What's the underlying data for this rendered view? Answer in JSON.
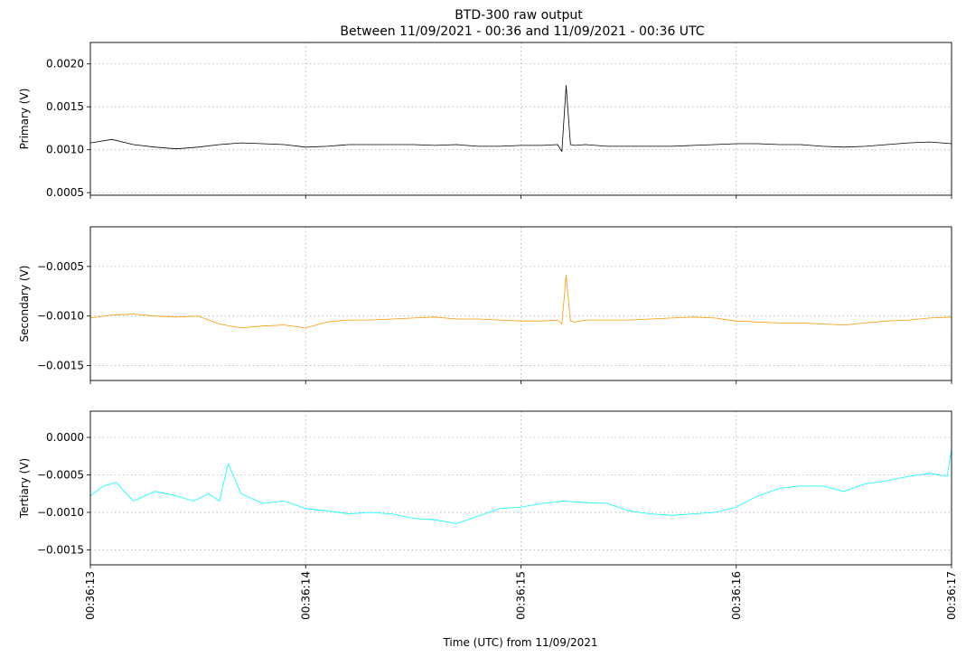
{
  "chart_data": {
    "type": "line",
    "title": "BTD-300 raw output",
    "subtitle": "Between 11/09/2021 - 00:36 and 11/09/2021 - 00:36 UTC",
    "xlabel": "Time (UTC) from 11/09/2021",
    "x_range": [
      "00:36:13",
      "00:36:17"
    ],
    "x_ticks": [
      "00:36:13",
      "00:36:14",
      "00:36:15",
      "00:36:16",
      "00:36:17"
    ],
    "grid": true,
    "panels": [
      {
        "ylabel": "Primary (V)",
        "color": "#000000",
        "ylim": [
          0.00047,
          0.00225
        ],
        "y_ticks": [
          0.0005,
          0.001,
          0.0015,
          0.002
        ],
        "y_tick_labels": [
          "0.0005",
          "0.0010",
          "0.0015",
          "0.0020"
        ],
        "series": [
          {
            "x": [
              "00:36:13.00",
              "00:36:13.10",
              "00:36:13.20",
              "00:36:13.30",
              "00:36:13.40",
              "00:36:13.50",
              "00:36:13.60",
              "00:36:13.70",
              "00:36:13.80",
              "00:36:13.90",
              "00:36:14.00",
              "00:36:14.10",
              "00:36:14.20",
              "00:36:14.30",
              "00:36:14.40",
              "00:36:14.50",
              "00:36:14.60",
              "00:36:14.70",
              "00:36:14.80",
              "00:36:14.90",
              "00:36:15.00",
              "00:36:15.10",
              "00:36:15.17",
              "00:36:15.19",
              "00:36:15.21",
              "00:36:15.23",
              "00:36:15.25",
              "00:36:15.30",
              "00:36:15.40",
              "00:36:15.50",
              "00:36:15.60",
              "00:36:15.70",
              "00:36:15.80",
              "00:36:15.90",
              "00:36:16.00",
              "00:36:16.10",
              "00:36:16.20",
              "00:36:16.30",
              "00:36:16.40",
              "00:36:16.50",
              "00:36:16.60",
              "00:36:16.70",
              "00:36:16.80",
              "00:36:16.90",
              "00:36:17.00"
            ],
            "y": [
              0.00108,
              0.00112,
              0.00106,
              0.00103,
              0.00101,
              0.00103,
              0.00106,
              0.00108,
              0.00107,
              0.00106,
              0.00103,
              0.00104,
              0.00106,
              0.00106,
              0.00106,
              0.00106,
              0.00105,
              0.00106,
              0.00104,
              0.00104,
              0.00105,
              0.00105,
              0.00106,
              0.00098,
              0.00175,
              0.00106,
              0.00105,
              0.00106,
              0.00104,
              0.00104,
              0.00104,
              0.00104,
              0.00105,
              0.00106,
              0.00107,
              0.00107,
              0.00106,
              0.00106,
              0.00104,
              0.00103,
              0.00104,
              0.00106,
              0.00108,
              0.00109,
              0.00107
            ]
          }
        ]
      },
      {
        "ylabel": "Secondary (V)",
        "color": "#ff9900",
        "ylim": [
          -0.00165,
          -0.0001
        ],
        "y_ticks": [
          -0.0015,
          -0.001,
          -0.0005
        ],
        "y_tick_labels": [
          "−0.0015",
          "−0.0010",
          "−0.0005"
        ],
        "series": [
          {
            "x": [
              "00:36:13.00",
              "00:36:13.10",
              "00:36:13.20",
              "00:36:13.30",
              "00:36:13.40",
              "00:36:13.50",
              "00:36:13.60",
              "00:36:13.70",
              "00:36:13.80",
              "00:36:13.90",
              "00:36:14.00",
              "00:36:14.10",
              "00:36:14.20",
              "00:36:14.30",
              "00:36:14.40",
              "00:36:14.50",
              "00:36:14.60",
              "00:36:14.70",
              "00:36:14.80",
              "00:36:14.90",
              "00:36:15.00",
              "00:36:15.10",
              "00:36:15.17",
              "00:36:15.19",
              "00:36:15.21",
              "00:36:15.23",
              "00:36:15.25",
              "00:36:15.30",
              "00:36:15.40",
              "00:36:15.50",
              "00:36:15.60",
              "00:36:15.70",
              "00:36:15.80",
              "00:36:15.90",
              "00:36:16.00",
              "00:36:16.10",
              "00:36:16.20",
              "00:36:16.30",
              "00:36:16.40",
              "00:36:16.50",
              "00:36:16.60",
              "00:36:16.70",
              "00:36:16.80",
              "00:36:16.90",
              "00:36:17.00"
            ],
            "y": [
              -0.00102,
              -0.00099,
              -0.00098,
              -0.001,
              -0.00101,
              -0.001,
              -0.00108,
              -0.00112,
              -0.0011,
              -0.00109,
              -0.00112,
              -0.00106,
              -0.00104,
              -0.00104,
              -0.00103,
              -0.00102,
              -0.00101,
              -0.00103,
              -0.00103,
              -0.00104,
              -0.00105,
              -0.00105,
              -0.00104,
              -0.00108,
              -0.00059,
              -0.00105,
              -0.00106,
              -0.00104,
              -0.00104,
              -0.00104,
              -0.00103,
              -0.00102,
              -0.00101,
              -0.00102,
              -0.00105,
              -0.00106,
              -0.00107,
              -0.00107,
              -0.00108,
              -0.00109,
              -0.00107,
              -0.00105,
              -0.00104,
              -0.00102,
              -0.00101
            ]
          }
        ]
      },
      {
        "ylabel": "Tertiary (V)",
        "color": "#00ffff",
        "ylim": [
          -0.0017,
          0.00035
        ],
        "y_ticks": [
          -0.0015,
          -0.001,
          -0.0005,
          0.0
        ],
        "y_tick_labels": [
          "−0.0015",
          "−0.0010",
          "−0.0005",
          "0.0000"
        ],
        "series": [
          {
            "x": [
              "00:36:13.00",
              "00:36:13.06",
              "00:36:13.12",
              "00:36:13.20",
              "00:36:13.30",
              "00:36:13.40",
              "00:36:13.48",
              "00:36:13.55",
              "00:36:13.60",
              "00:36:13.64",
              "00:36:13.70",
              "00:36:13.80",
              "00:36:13.90",
              "00:36:14.00",
              "00:36:14.10",
              "00:36:14.20",
              "00:36:14.30",
              "00:36:14.40",
              "00:36:14.50",
              "00:36:14.60",
              "00:36:14.70",
              "00:36:14.80",
              "00:36:14.90",
              "00:36:15.00",
              "00:36:15.10",
              "00:36:15.20",
              "00:36:15.30",
              "00:36:15.40",
              "00:36:15.50",
              "00:36:15.60",
              "00:36:15.70",
              "00:36:15.80",
              "00:36:15.90",
              "00:36:16.00",
              "00:36:16.10",
              "00:36:16.20",
              "00:36:16.30",
              "00:36:16.40",
              "00:36:16.50",
              "00:36:16.60",
              "00:36:16.70",
              "00:36:16.80",
              "00:36:16.90",
              "00:36:16.98",
              "00:36:17.00"
            ],
            "y": [
              -0.00078,
              -0.00065,
              -0.0006,
              -0.00085,
              -0.00072,
              -0.00078,
              -0.00085,
              -0.00075,
              -0.00085,
              -0.00035,
              -0.00075,
              -0.00088,
              -0.00085,
              -0.00095,
              -0.00098,
              -0.00102,
              -0.001,
              -0.00102,
              -0.00108,
              -0.0011,
              -0.00115,
              -0.00105,
              -0.00095,
              -0.00093,
              -0.00088,
              -0.00085,
              -0.00087,
              -0.00088,
              -0.00098,
              -0.00102,
              -0.00104,
              -0.00102,
              -0.001,
              -0.00093,
              -0.00078,
              -0.00068,
              -0.00065,
              -0.00065,
              -0.00072,
              -0.00062,
              -0.00058,
              -0.00052,
              -0.00048,
              -0.00052,
              -0.00015
            ]
          }
        ]
      }
    ]
  }
}
